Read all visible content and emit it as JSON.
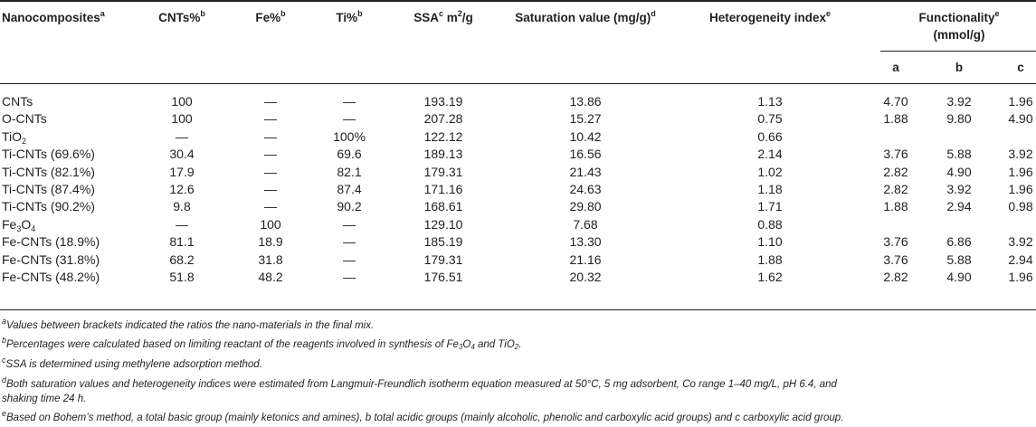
{
  "headers": {
    "nanocomposites": "Nanocomposites",
    "nanocomposites_sup": "a",
    "cnts": "CNTs%",
    "cnts_sup": "b",
    "fe": "Fe%",
    "fe_sup": "b",
    "ti": "Ti%",
    "ti_sup": "b",
    "ssa": "SSA",
    "ssa_sup": "c",
    "ssa_unit": " m",
    "ssa_unit_sup": "2",
    "ssa_unit_tail": "/g",
    "saturation": "Saturation value (mg/g)",
    "saturation_sup": "d",
    "heterogeneity": "Heterogeneity index",
    "heterogeneity_sup": "e",
    "functionality_line1": "Functionality",
    "functionality_sup": "e",
    "functionality_line2": "(mmol/g)",
    "sub_a": "a",
    "sub_b": "b",
    "sub_c": "c"
  },
  "rows": [
    {
      "name": "CNTs",
      "cnts": "100",
      "fe": "—",
      "ti": "—",
      "ssa": "193.19",
      "sat": "13.86",
      "het": "1.13",
      "a": "4.70",
      "b": "3.92",
      "c": "1.96"
    },
    {
      "name": "O-CNTs",
      "cnts": "100",
      "fe": "—",
      "ti": "—",
      "ssa": "207.28",
      "sat": "15.27",
      "het": "0.75",
      "a": "1.88",
      "b": "9.80",
      "c": "4.90"
    },
    {
      "name": "TiO",
      "name_sub": "2",
      "cnts": "—",
      "fe": "—",
      "ti": "100%",
      "ssa": "122.12",
      "sat": "10.42",
      "het": "0.66",
      "a": "",
      "b": "",
      "c": ""
    },
    {
      "name": "Ti-CNTs (69.6%)",
      "cnts": "30.4",
      "fe": "—",
      "ti": "69.6",
      "ssa": "189.13",
      "sat": "16.56",
      "het": "2.14",
      "a": "3.76",
      "b": "5.88",
      "c": "3.92"
    },
    {
      "name": "Ti-CNTs (82.1%)",
      "cnts": "17.9",
      "fe": "—",
      "ti": "82.1",
      "ssa": "179.31",
      "sat": "21.43",
      "het": "1.02",
      "a": "2.82",
      "b": "4.90",
      "c": "1.96"
    },
    {
      "name": "Ti-CNTs (87.4%)",
      "cnts": "12.6",
      "fe": "—",
      "ti": "87.4",
      "ssa": "171.16",
      "sat": "24.63",
      "het": "1.18",
      "a": "2.82",
      "b": "3.92",
      "c": "1.96"
    },
    {
      "name": "Ti-CNTs (90.2%)",
      "cnts": "9.8",
      "fe": "—",
      "ti": "90.2",
      "ssa": "168.61",
      "sat": "29.80",
      "het": "1.71",
      "a": "1.88",
      "b": "2.94",
      "c": "0.98"
    },
    {
      "name": "Fe",
      "name_sub": "3",
      "name_mid": "O",
      "name_sub2": "4",
      "cnts": "—",
      "fe": "100",
      "ti": "—",
      "ssa": "129.10",
      "sat": "7.68",
      "het": "0.88",
      "a": "",
      "b": "",
      "c": ""
    },
    {
      "name": "Fe-CNTs (18.9%)",
      "cnts": "81.1",
      "fe": "18.9",
      "ti": "—",
      "ssa": "185.19",
      "sat": "13.30",
      "het": "1.10",
      "a": "3.76",
      "b": "6.86",
      "c": "3.92"
    },
    {
      "name": "Fe-CNTs (31.8%)",
      "cnts": "68.2",
      "fe": "31.8",
      "ti": "—",
      "ssa": "179.31",
      "sat": "21.16",
      "het": "1.88",
      "a": "3.76",
      "b": "5.88",
      "c": "2.94"
    },
    {
      "name": "Fe-CNTs (48.2%)",
      "cnts": "51.8",
      "fe": "48.2",
      "ti": "—",
      "ssa": "176.51",
      "sat": "20.32",
      "het": "1.62",
      "a": "2.82",
      "b": "4.90",
      "c": "1.96"
    }
  ],
  "footnotes": [
    {
      "sup": "a",
      "text": "Values between brackets indicated the ratios the nano-materials in the final mix."
    },
    {
      "sup": "b",
      "text": "Percentages were calculated based on limiting reactant of the reagents involved in synthesis of Fe",
      "sub1": "3",
      "mid": "O",
      "sub2": "4",
      "mid2": " and TiO",
      "sub3": "2",
      "tail": "."
    },
    {
      "sup": "c",
      "text": "SSA is determined using methylene adsorption method."
    },
    {
      "sup": "d",
      "text": "Both saturation values and heterogeneity indices were estimated from Langmuir-Freundlich isotherm equation measured at 50°C, 5 mg adsorbent, Co range 1–40 mg/L, pH 6.4, and"
    },
    {
      "sup": "",
      "text": "shaking time 24 h."
    },
    {
      "sup": "e",
      "text": "Based on Bohem’s method, a total basic group (mainly ketonics and amines), b total acidic groups (mainly alcoholic, phenolic and carboxylic acid groups) and c carboxylic acid group."
    }
  ]
}
